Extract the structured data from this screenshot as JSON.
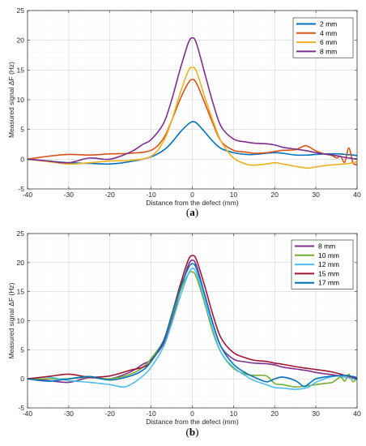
{
  "chart_data": [
    {
      "type": "line",
      "panel_label": "a",
      "xlabel": "Distance from the defect (mm)",
      "ylabel": "Measured signal ΔF (Hz)",
      "xlim": [
        -40,
        40
      ],
      "ylim": [
        -5,
        25
      ],
      "xticks": [
        "-40",
        "-30",
        "-20",
        "-10",
        "0",
        "10",
        "20",
        "30",
        "40"
      ],
      "yticks": [
        "-5",
        "0",
        "5",
        "10",
        "15",
        "20",
        "25"
      ],
      "grid": true,
      "legend_position": "top-right",
      "series": [
        {
          "name": "2 mm",
          "color": "#0072BD",
          "x": [
            -40,
            -35,
            -30,
            -25,
            -20,
            -15,
            -10,
            -7,
            -5,
            -3,
            -1,
            0,
            1,
            3,
            5,
            7,
            10,
            13,
            15,
            18,
            20,
            22,
            25,
            28,
            30,
            33,
            35,
            37,
            39,
            40
          ],
          "y": [
            0,
            -0.3,
            -0.6,
            -0.7,
            -0.8,
            -0.4,
            0.4,
            1.5,
            2.8,
            4.5,
            5.9,
            6.3,
            6.1,
            4.6,
            3.0,
            1.8,
            1.1,
            0.8,
            0.8,
            1.0,
            1.1,
            1.0,
            0.7,
            0.7,
            0.8,
            0.9,
            0.9,
            0.8,
            0.7,
            0.6
          ]
        },
        {
          "name": "4 mm",
          "color": "#D95319",
          "x": [
            -40,
            -35,
            -30,
            -25,
            -20,
            -15,
            -10,
            -7,
            -5,
            -3,
            -1,
            0,
            1,
            3,
            5,
            7,
            10,
            13,
            15,
            18,
            20,
            22,
            25,
            27,
            28,
            30,
            32,
            34,
            35,
            36,
            37,
            38,
            39,
            40
          ],
          "y": [
            0,
            0.5,
            0.8,
            0.7,
            0.9,
            1.0,
            1.5,
            3.5,
            6.5,
            10.0,
            12.8,
            13.4,
            12.8,
            9.5,
            6.0,
            3.0,
            1.5,
            1.2,
            1.0,
            1.1,
            1.3,
            1.5,
            1.6,
            2.2,
            2.2,
            1.4,
            0.9,
            0.6,
            0.2,
            0.5,
            -0.5,
            1.9,
            -0.6,
            -0.9
          ]
        },
        {
          "name": "6 mm",
          "color": "#EDB120",
          "x": [
            -40,
            -35,
            -30,
            -25,
            -20,
            -15,
            -10,
            -7,
            -5,
            -3,
            -1,
            0,
            1,
            3,
            5,
            7,
            10,
            13,
            15,
            18,
            20,
            22,
            25,
            28,
            30,
            33,
            35,
            37,
            39,
            40
          ],
          "y": [
            0,
            -0.4,
            -0.8,
            -0.6,
            -0.3,
            -0.2,
            0.5,
            3.0,
            6.5,
            11.0,
            14.8,
            15.4,
            14.8,
            10.5,
            6.5,
            3.0,
            0.2,
            -0.8,
            -1.0,
            -0.8,
            -0.6,
            -0.8,
            -1.2,
            -1.5,
            -1.3,
            -1.0,
            -0.9,
            -0.8,
            -0.6,
            -0.4
          ]
        },
        {
          "name": "8 mm",
          "color": "#7E2F8E",
          "x": [
            -40,
            -35,
            -30,
            -25,
            -20,
            -15,
            -12,
            -10,
            -7,
            -5,
            -3,
            -1,
            0,
            1,
            3,
            5,
            7,
            10,
            13,
            15,
            18,
            20,
            22,
            25,
            28,
            30,
            33,
            35,
            37,
            39,
            40
          ],
          "y": [
            0,
            -0.3,
            -0.6,
            0.2,
            0.0,
            1.2,
            2.5,
            3.3,
            6.0,
            10.0,
            15.0,
            19.5,
            20.4,
            19.5,
            14.5,
            9.5,
            5.5,
            3.4,
            2.9,
            2.7,
            2.6,
            2.4,
            2.0,
            1.7,
            1.4,
            1.1,
            0.8,
            0.6,
            0.3,
            0.1,
            0.0
          ]
        }
      ]
    },
    {
      "type": "line",
      "panel_label": "b",
      "xlabel": "Distance from the defect (mm)",
      "ylabel": "Measured signal ΔF (Hz)",
      "xlim": [
        -40,
        40
      ],
      "ylim": [
        -5,
        25
      ],
      "xticks": [
        "-40",
        "-30",
        "-20",
        "-10",
        "0",
        "10",
        "20",
        "30",
        "40"
      ],
      "yticks": [
        "-5",
        "0",
        "5",
        "10",
        "15",
        "20",
        "25"
      ],
      "grid": true,
      "legend_position": "top-right",
      "series": [
        {
          "name": "8 mm",
          "color": "#7E2F8E",
          "x": [
            -40,
            -35,
            -30,
            -25,
            -20,
            -15,
            -12,
            -10,
            -7,
            -5,
            -3,
            -1,
            0,
            1,
            3,
            5,
            7,
            10,
            13,
            15,
            18,
            20,
            22,
            25,
            28,
            30,
            33,
            35,
            37,
            39,
            40
          ],
          "y": [
            0,
            -0.3,
            -0.6,
            0.2,
            0.0,
            1.2,
            2.5,
            3.3,
            6.0,
            10.0,
            15.0,
            19.5,
            20.4,
            19.5,
            14.5,
            9.5,
            5.5,
            3.4,
            2.9,
            2.7,
            2.6,
            2.4,
            2.0,
            1.7,
            1.4,
            1.1,
            0.8,
            0.6,
            0.3,
            0.1,
            0.0
          ]
        },
        {
          "name": "10 mm",
          "color": "#77AC30",
          "x": [
            -40,
            -35,
            -30,
            -25,
            -20,
            -15,
            -12,
            -10,
            -7,
            -5,
            -3,
            -1,
            0,
            1,
            3,
            5,
            7,
            10,
            13,
            15,
            18,
            20,
            22,
            25,
            28,
            30,
            32,
            34,
            36,
            37,
            38,
            39,
            40
          ],
          "y": [
            0,
            0.0,
            0.0,
            0.3,
            0.0,
            0.8,
            2.0,
            3.5,
            6.5,
            10.5,
            15.0,
            18.0,
            18.4,
            17.5,
            13.0,
            8.0,
            4.5,
            1.8,
            0.8,
            0.6,
            0.5,
            -0.8,
            -1.0,
            -1.4,
            -1.2,
            -1.0,
            -0.8,
            -0.6,
            0.3,
            -0.4,
            0.8,
            -0.5,
            0.2
          ]
        },
        {
          "name": "12 mm",
          "color": "#4DBEEE",
          "x": [
            -40,
            -35,
            -30,
            -25,
            -20,
            -17,
            -15,
            -12,
            -10,
            -7,
            -5,
            -3,
            -1,
            0,
            1,
            3,
            5,
            7,
            10,
            13,
            15,
            18,
            20,
            22,
            25,
            28,
            30,
            33,
            35,
            37,
            39,
            40
          ],
          "y": [
            0,
            0.3,
            -0.3,
            -0.6,
            -1.0,
            -1.4,
            -1.0,
            0.5,
            2.0,
            5.5,
            9.5,
            14.0,
            18.0,
            19.0,
            18.2,
            13.5,
            8.5,
            4.5,
            2.0,
            0.5,
            -0.3,
            -1.0,
            -1.5,
            -1.6,
            -1.8,
            -1.5,
            -0.6,
            0.2,
            0.5,
            0.3,
            0.0,
            -0.2
          ]
        },
        {
          "name": "15 mm",
          "color": "#A2142F",
          "x": [
            -40,
            -35,
            -30,
            -25,
            -20,
            -15,
            -12,
            -10,
            -7,
            -5,
            -3,
            -1,
            0,
            1,
            3,
            5,
            7,
            10,
            13,
            15,
            18,
            20,
            22,
            25,
            28,
            30,
            33,
            35,
            37,
            39,
            40
          ],
          "y": [
            0,
            0.4,
            0.8,
            0.3,
            0.5,
            1.5,
            2.0,
            3.0,
            6.5,
            11.0,
            16.0,
            20.4,
            21.2,
            20.5,
            16.0,
            11.0,
            7.0,
            4.5,
            3.6,
            3.2,
            3.0,
            2.7,
            2.5,
            2.1,
            1.8,
            1.6,
            1.3,
            1.0,
            0.6,
            0.3,
            0.0
          ]
        },
        {
          "name": "17 mm",
          "color": "#0072BD",
          "x": [
            -40,
            -35,
            -30,
            -25,
            -20,
            -15,
            -12,
            -10,
            -7,
            -5,
            -3,
            -1,
            0,
            1,
            3,
            5,
            7,
            10,
            13,
            15,
            18,
            20,
            22,
            25,
            27,
            28,
            30,
            33,
            35,
            37,
            39,
            40
          ],
          "y": [
            0,
            -0.4,
            0.0,
            0.4,
            -0.2,
            0.5,
            1.5,
            3.0,
            6.5,
            11.0,
            15.5,
            19.0,
            19.8,
            19.0,
            14.5,
            9.5,
            5.5,
            2.5,
            1.0,
            0.3,
            -0.5,
            0.0,
            0.3,
            -0.3,
            -1.3,
            -1.0,
            0.0,
            0.4,
            0.5,
            0.6,
            0.4,
            0.2
          ]
        }
      ]
    }
  ]
}
